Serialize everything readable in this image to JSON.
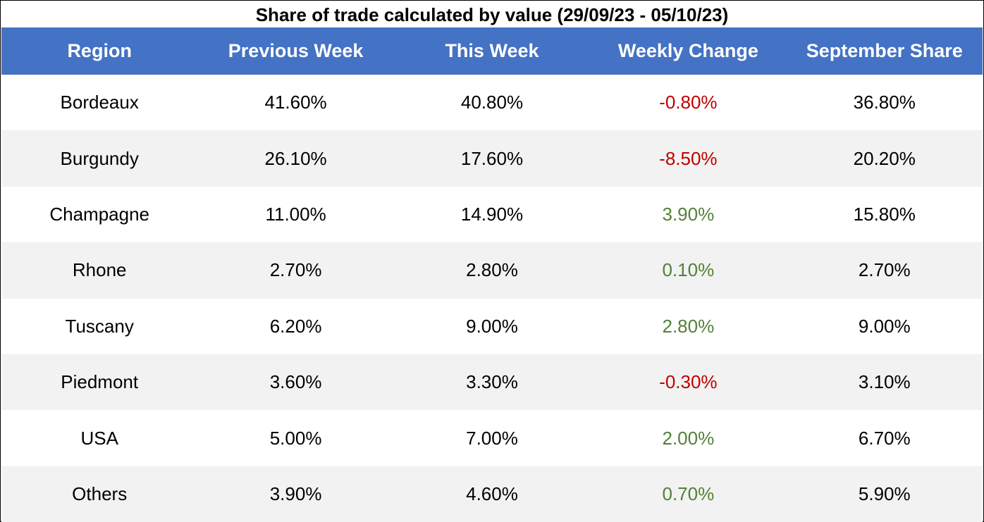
{
  "chart_data": {
    "type": "table",
    "title": "Share of trade calculated by value (29/09/23 - 05/10/23)",
    "columns": [
      "Region",
      "Previous Week",
      "This Week",
      "Weekly Change",
      "September Share"
    ],
    "rows": [
      {
        "region": "Bordeaux",
        "previous_week": "41.60%",
        "this_week": "40.80%",
        "weekly_change": "-0.80%",
        "september_share": "36.80%",
        "change_sign": "neg"
      },
      {
        "region": "Burgundy",
        "previous_week": "26.10%",
        "this_week": "17.60%",
        "weekly_change": "-8.50%",
        "september_share": "20.20%",
        "change_sign": "neg"
      },
      {
        "region": "Champagne",
        "previous_week": "11.00%",
        "this_week": "14.90%",
        "weekly_change": "3.90%",
        "september_share": "15.80%",
        "change_sign": "pos"
      },
      {
        "region": "Rhone",
        "previous_week": "2.70%",
        "this_week": "2.80%",
        "weekly_change": "0.10%",
        "september_share": "2.70%",
        "change_sign": "pos"
      },
      {
        "region": "Tuscany",
        "previous_week": "6.20%",
        "this_week": "9.00%",
        "weekly_change": "2.80%",
        "september_share": "9.00%",
        "change_sign": "pos"
      },
      {
        "region": "Piedmont",
        "previous_week": "3.60%",
        "this_week": "3.30%",
        "weekly_change": "-0.30%",
        "september_share": "3.10%",
        "change_sign": "neg"
      },
      {
        "region": "USA",
        "previous_week": "5.00%",
        "this_week": "7.00%",
        "weekly_change": "2.00%",
        "september_share": "6.70%",
        "change_sign": "pos"
      },
      {
        "region": "Others",
        "previous_week": "3.90%",
        "this_week": "4.60%",
        "weekly_change": "0.70%",
        "september_share": "5.90%",
        "change_sign": "pos"
      }
    ]
  },
  "colors": {
    "header_bg": "#4472c4",
    "header_text": "#ffffff",
    "stripe": "#f2f2f2",
    "negative": "#c00000",
    "positive": "#538135"
  }
}
